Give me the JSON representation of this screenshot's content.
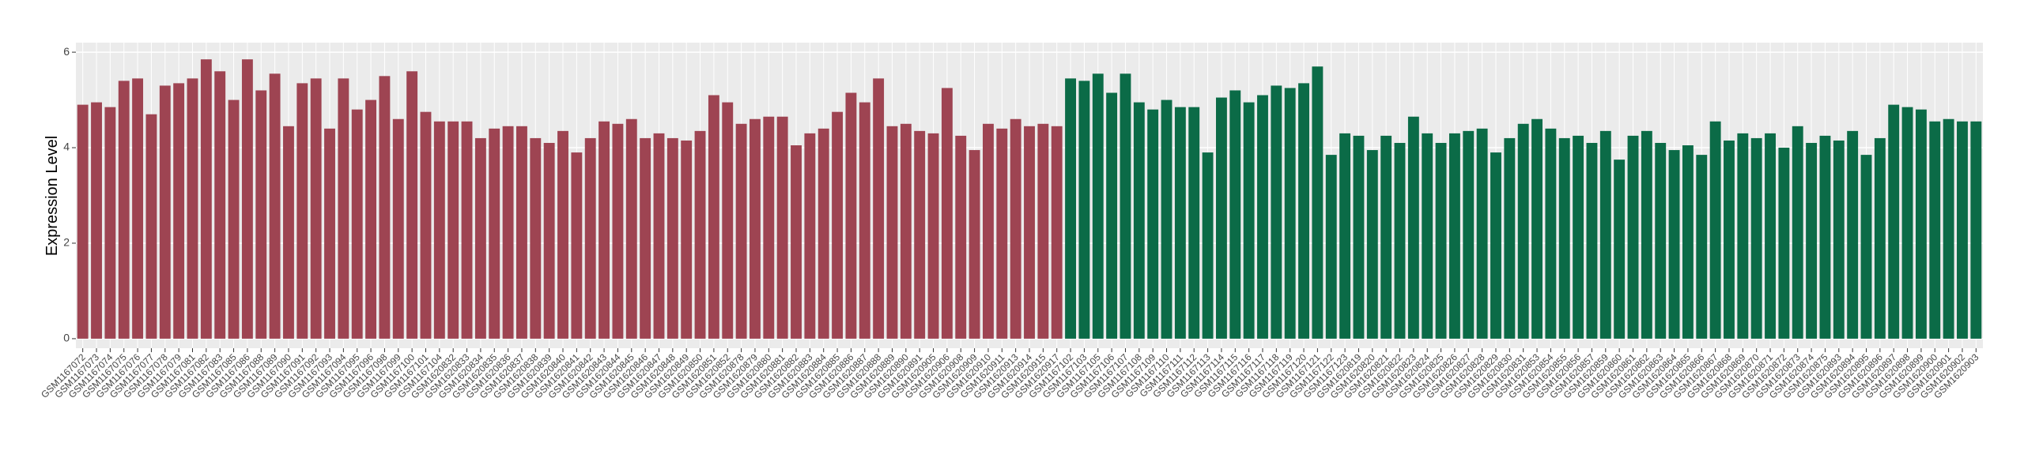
{
  "chart_data": {
    "type": "bar",
    "y_label": "Expression Level",
    "categories": [
      "GSM1167072",
      "GSM1167073",
      "GSM1167074",
      "GSM1167075",
      "GSM1167076",
      "GSM1167077",
      "GSM1167078",
      "GSM1167079",
      "GSM1167081",
      "GSM1167082",
      "GSM1167083",
      "GSM1167085",
      "GSM1167086",
      "GSM1167088",
      "GSM1167089",
      "GSM1167090",
      "GSM1167091",
      "GSM1167092",
      "GSM1167093",
      "GSM1167094",
      "GSM1167095",
      "GSM1167096",
      "GSM1167098",
      "GSM1167099",
      "GSM1167100",
      "GSM1167101",
      "GSM1167104",
      "GSM1620832",
      "GSM1620833",
      "GSM1620834",
      "GSM1620835",
      "GSM1620836",
      "GSM1620837",
      "GSM1620838",
      "GSM1620839",
      "GSM1620840",
      "GSM1620841",
      "GSM1620842",
      "GSM1620843",
      "GSM1620844",
      "GSM1620845",
      "GSM1620846",
      "GSM1620847",
      "GSM1620848",
      "GSM1620849",
      "GSM1620850",
      "GSM1620851",
      "GSM1620852",
      "GSM1620878",
      "GSM1620879",
      "GSM1620880",
      "GSM1620881",
      "GSM1620882",
      "GSM1620883",
      "GSM1620884",
      "GSM1620885",
      "GSM1620886",
      "GSM1620887",
      "GSM1620888",
      "GSM1620889",
      "GSM1620890",
      "GSM1620891",
      "GSM1620905",
      "GSM1620906",
      "GSM1620908",
      "GSM1620909",
      "GSM1620910",
      "GSM1620911",
      "GSM1620913",
      "GSM1620914",
      "GSM1620915",
      "GSM1620917",
      "GSM1167102",
      "GSM1167103",
      "GSM1167105",
      "GSM1167106",
      "GSM1167107",
      "GSM1167108",
      "GSM1167109",
      "GSM1167110",
      "GSM1167111",
      "GSM1167112",
      "GSM1167113",
      "GSM1167114",
      "GSM1167115",
      "GSM1167116",
      "GSM1167117",
      "GSM1167118",
      "GSM1167119",
      "GSM1167120",
      "GSM1167121",
      "GSM1167122",
      "GSM1167123",
      "GSM1620819",
      "GSM1620820",
      "GSM1620821",
      "GSM1620822",
      "GSM1620823",
      "GSM1620824",
      "GSM1620825",
      "GSM1620826",
      "GSM1620827",
      "GSM1620828",
      "GSM1620829",
      "GSM1620830",
      "GSM1620831",
      "GSM1620853",
      "GSM1620854",
      "GSM1620855",
      "GSM1620856",
      "GSM1620857",
      "GSM1620859",
      "GSM1620860",
      "GSM1620861",
      "GSM1620862",
      "GSM1620863",
      "GSM1620864",
      "GSM1620865",
      "GSM1620866",
      "GSM1620867",
      "GSM1620868",
      "GSM1620869",
      "GSM1620870",
      "GSM1620871",
      "GSM1620872",
      "GSM1620873",
      "GSM1620874",
      "GSM1620875",
      "GSM1620893",
      "GSM1620894",
      "GSM1620895",
      "GSM1620896",
      "GSM1620897",
      "GSM1620898",
      "GSM1620899",
      "GSM1620900",
      "GSM1620901",
      "GSM1620902",
      "GSM1620903"
    ],
    "series": [
      {
        "color": "#9e4452",
        "values": [
          4.9,
          4.95,
          4.85,
          5.4,
          5.45,
          4.7,
          5.3,
          5.35,
          5.45,
          5.85,
          5.6,
          5.0,
          5.85,
          5.2,
          5.55,
          4.45,
          5.35,
          5.45,
          4.4,
          5.45,
          4.8,
          5.0,
          5.5,
          4.6,
          5.6,
          4.75,
          4.55,
          4.55,
          4.55,
          4.2,
          4.4,
          4.45,
          4.45,
          4.2,
          4.1,
          4.35,
          3.9,
          4.2,
          4.55,
          4.5,
          4.6,
          4.2,
          4.3,
          4.2,
          4.15,
          4.35,
          5.1,
          4.95,
          4.5,
          4.6,
          4.65,
          4.65,
          4.05,
          4.3,
          4.4,
          4.75,
          5.15,
          4.95,
          5.45,
          4.45,
          4.5,
          4.35,
          4.3,
          5.25,
          4.25,
          3.95,
          4.5,
          4.4,
          4.6,
          4.45,
          4.5,
          4.45,
          null,
          null,
          null,
          null,
          null,
          null,
          null,
          null,
          null,
          null,
          null,
          null,
          null,
          null,
          null,
          null,
          null,
          null,
          null,
          null,
          null,
          null,
          null,
          null,
          null,
          null,
          null,
          null,
          null,
          null,
          null,
          null,
          null,
          null,
          null,
          null,
          null,
          null,
          null,
          null,
          null,
          null,
          null,
          null,
          null,
          null,
          null,
          null,
          null,
          null,
          null,
          null,
          null,
          null,
          null,
          null,
          null,
          null,
          null,
          null,
          null,
          null,
          null,
          null,
          null,
          null,
          null
        ]
      },
      {
        "color": "#0b6b47",
        "values": [
          null,
          null,
          null,
          null,
          null,
          null,
          null,
          null,
          null,
          null,
          null,
          null,
          null,
          null,
          null,
          null,
          null,
          null,
          null,
          null,
          null,
          null,
          null,
          null,
          null,
          null,
          null,
          null,
          null,
          null,
          null,
          null,
          null,
          null,
          null,
          null,
          null,
          null,
          null,
          null,
          null,
          null,
          null,
          null,
          null,
          null,
          null,
          null,
          null,
          null,
          null,
          null,
          null,
          null,
          null,
          null,
          null,
          null,
          null,
          null,
          null,
          null,
          null,
          null,
          null,
          null,
          null,
          null,
          null,
          null,
          null,
          null,
          5.45,
          5.4,
          5.55,
          5.15,
          5.55,
          4.95,
          4.8,
          5.0,
          4.85,
          4.85,
          3.9,
          5.05,
          5.2,
          4.95,
          5.1,
          5.3,
          5.25,
          5.35,
          5.7,
          3.85,
          4.3,
          4.25,
          3.95,
          4.25,
          4.1,
          4.65,
          4.3,
          4.1,
          4.3,
          4.35,
          4.4,
          3.9,
          4.2,
          4.5,
          4.6,
          4.4,
          4.2,
          4.25,
          4.1,
          4.35,
          3.75,
          4.25,
          4.35,
          4.1,
          3.95,
          4.05,
          3.85,
          4.55,
          4.15,
          4.3,
          4.2,
          4.3,
          4.0,
          4.45,
          4.1,
          4.25,
          4.15,
          4.35,
          3.85,
          4.2,
          4.9,
          4.85,
          4.8,
          4.55,
          4.6,
          4.55,
          4.55
        ]
      }
    ],
    "ylim": [
      -0.2,
      6.2
    ],
    "yticks": [
      0,
      2,
      4,
      6
    ],
    "grid": true
  }
}
